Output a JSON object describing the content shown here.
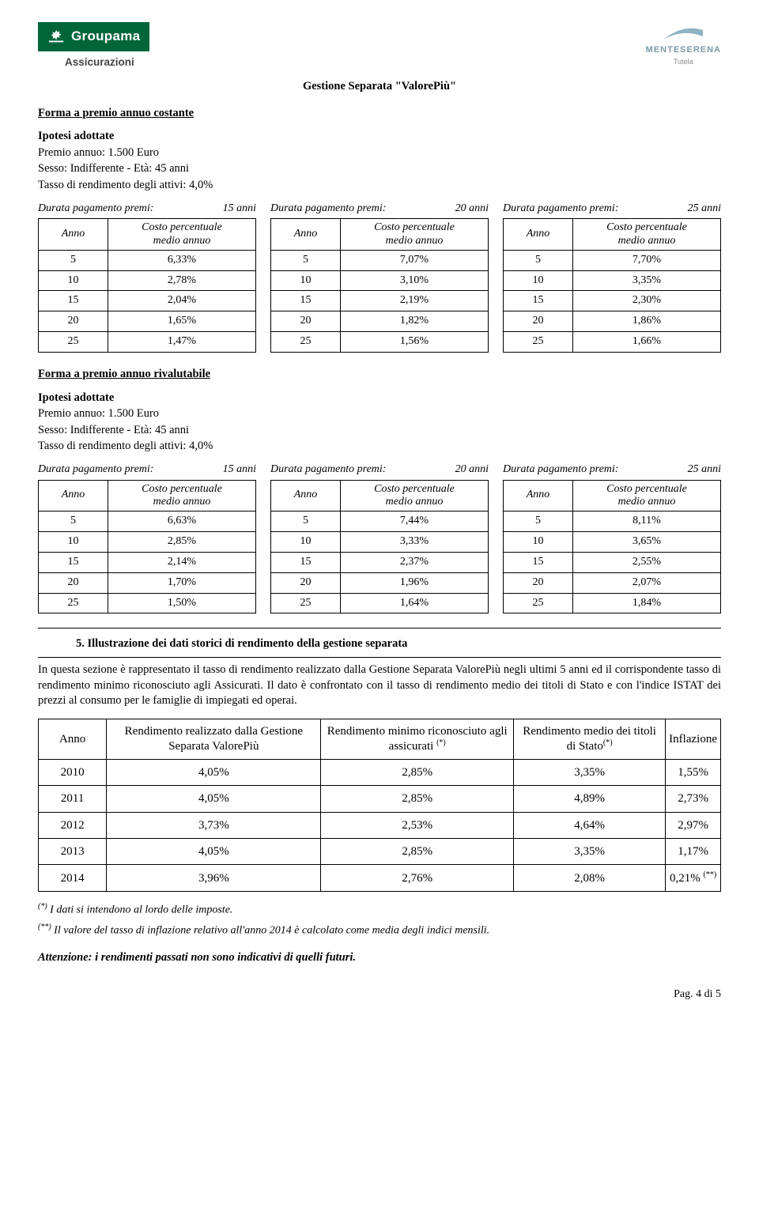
{
  "header": {
    "brand": "Groupama",
    "brand_sub": "Assicurazioni",
    "right_brand": "MENTESERENA",
    "right_sub": "Tutela",
    "colors": {
      "brand_bg": "#00663a",
      "ms_text": "#7a9aa8"
    }
  },
  "center_title": "Gestione Separata \"ValorePiù\"",
  "forma1": {
    "title": "Forma a premio annuo costante",
    "hyp_title": "Ipotesi adottate",
    "premio_label": "Premio annuo:",
    "premio_val": "1.500 Euro",
    "sesso_label": "Sesso:",
    "sesso_val": "Indifferente",
    "eta_label": "Età:",
    "eta_val": "45 anni",
    "tasso_label": "Tasso di rendimento degli attivi:",
    "tasso_val": "4,0%",
    "col_anno": "Anno",
    "col_costo": "Costo percentuale medio annuo",
    "dur_label": "Durata pagamento premi:",
    "blocks": [
      {
        "dur": "15 anni",
        "rows": [
          [
            "5",
            "6,33%"
          ],
          [
            "10",
            "2,78%"
          ],
          [
            "15",
            "2,04%"
          ],
          [
            "20",
            "1,65%"
          ],
          [
            "25",
            "1,47%"
          ]
        ]
      },
      {
        "dur": "20 anni",
        "rows": [
          [
            "5",
            "7,07%"
          ],
          [
            "10",
            "3,10%"
          ],
          [
            "15",
            "2,19%"
          ],
          [
            "20",
            "1,82%"
          ],
          [
            "25",
            "1,56%"
          ]
        ]
      },
      {
        "dur": "25 anni",
        "rows": [
          [
            "5",
            "7,70%"
          ],
          [
            "10",
            "3,35%"
          ],
          [
            "15",
            "2,30%"
          ],
          [
            "20",
            "1,86%"
          ],
          [
            "25",
            "1,66%"
          ]
        ]
      }
    ]
  },
  "forma2": {
    "title": "Forma a premio annuo rivalutabile",
    "hyp_title": "Ipotesi adottate",
    "premio_label": "Premio annuo:",
    "premio_val": "1.500 Euro",
    "sesso_label": "Sesso:",
    "sesso_val": "Indifferente",
    "eta_label": "Età:",
    "eta_val": "45 anni",
    "tasso_label": "Tasso di rendimento degli attivi:",
    "tasso_val": "4,0%",
    "col_anno": "Anno",
    "col_costo": "Costo percentuale medio annuo",
    "dur_label": "Durata pagamento premi:",
    "blocks": [
      {
        "dur": "15 anni",
        "rows": [
          [
            "5",
            "6,63%"
          ],
          [
            "10",
            "2,85%"
          ],
          [
            "15",
            "2,14%"
          ],
          [
            "20",
            "1,70%"
          ],
          [
            "25",
            "1,50%"
          ]
        ]
      },
      {
        "dur": "20 anni",
        "rows": [
          [
            "5",
            "7,44%"
          ],
          [
            "10",
            "3,33%"
          ],
          [
            "15",
            "2,37%"
          ],
          [
            "20",
            "1,96%"
          ],
          [
            "25",
            "1,64%"
          ]
        ]
      },
      {
        "dur": "25 anni",
        "rows": [
          [
            "5",
            "8,11%"
          ],
          [
            "10",
            "3,65%"
          ],
          [
            "15",
            "2,55%"
          ],
          [
            "20",
            "2,07%"
          ],
          [
            "25",
            "1,84%"
          ]
        ]
      }
    ]
  },
  "section5": {
    "title": "5.   Illustrazione dei dati storici di rendimento della gestione separata",
    "para": "In questa sezione è rappresentato il tasso di rendimento realizzato dalla Gestione Separata ValorePiù negli ultimi 5 anni ed il corrispondente tasso di rendimento minimo riconosciuto agli Assicurati. Il dato è confrontato con il tasso di rendimento medio dei titoli di Stato e con l'indice ISTAT dei prezzi al consumo per le famiglie di impiegati ed operai.",
    "cols": [
      "Anno",
      "Rendimento realizzato dalla Gestione Separata ValorePiù",
      "Rendimento minimo riconosciuto agli assicurati (*)",
      "Rendimento medio dei titoli di Stato(*)",
      "Inflazione"
    ],
    "rows": [
      [
        "2010",
        "4,05%",
        "2,85%",
        "3,35%",
        "1,55%"
      ],
      [
        "2011",
        "4,05%",
        "2,85%",
        "4,89%",
        "2,73%"
      ],
      [
        "2012",
        "3,73%",
        "2,53%",
        "4,64%",
        "2,97%"
      ],
      [
        "2013",
        "4,05%",
        "2,85%",
        "3,35%",
        "1,17%"
      ],
      [
        "2014",
        "3,96%",
        "2,76%",
        "2,08%",
        "0,21% (**)"
      ]
    ],
    "foot1": "(*) I dati si intendono al lordo delle imposte.",
    "foot2": "(**) Il valore del tasso di inflazione relativo all'anno 2014 è calcolato come media degli indici mensili.",
    "warn": "Attenzione: i rendimenti passati non sono indicativi di quelli futuri."
  },
  "page": "Pag. 4 di 5"
}
